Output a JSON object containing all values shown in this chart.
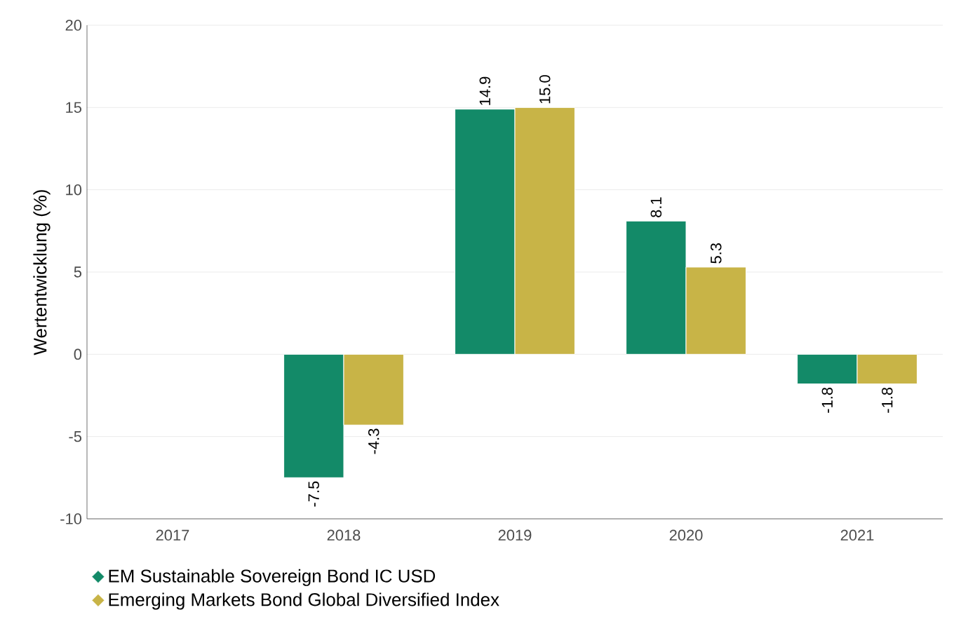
{
  "chart_data": {
    "type": "bar",
    "ylabel": "Wertentwicklung (%)",
    "categories": [
      "2017",
      "2018",
      "2019",
      "2020",
      "2021"
    ],
    "series": [
      {
        "name": "EM Sustainable Sovereign Bond IC USD",
        "color": "#138a68",
        "values": [
          null,
          -7.5,
          14.9,
          8.1,
          -1.8
        ],
        "value_labels": [
          null,
          "-7.5",
          "14.9",
          "8.1",
          "-1.8"
        ]
      },
      {
        "name": "Emerging Markets Bond Global Diversified Index",
        "color": "#c8b447",
        "values": [
          null,
          -4.3,
          15.0,
          5.3,
          -1.8
        ],
        "value_labels": [
          null,
          "-4.3",
          "15.0",
          "5.3",
          "-1.8"
        ]
      }
    ],
    "ylim": [
      -10,
      20
    ],
    "yticks": [
      -10,
      -5,
      0,
      5,
      10,
      15,
      20
    ],
    "grid": "y",
    "legend": "bottom"
  }
}
